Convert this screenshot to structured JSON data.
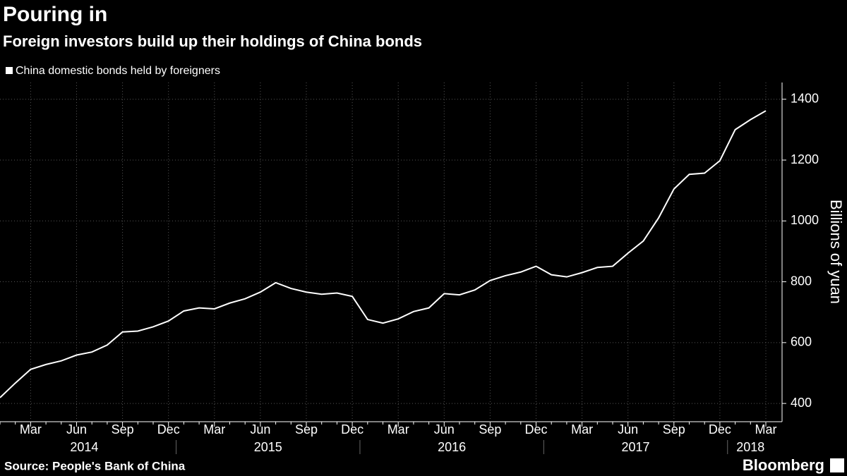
{
  "chart_data": {
    "type": "line",
    "title": "Pouring in",
    "subtitle": "Foreign investors build up their holdings of China bonds",
    "y_label": "Billions of yuan",
    "source": "Source: People's Bank of China",
    "credit": "Bloomberg",
    "categories": [
      null,
      null,
      "Mar",
      null,
      null,
      "Jun",
      null,
      null,
      "Sep",
      null,
      null,
      "Dec",
      null,
      null,
      "Mar",
      null,
      null,
      "Jun",
      null,
      null,
      "Sep",
      null,
      null,
      "Dec",
      null,
      null,
      "Mar",
      null,
      null,
      "Jun",
      null,
      null,
      "Sep",
      null,
      null,
      "Dec",
      null,
      null,
      "Mar",
      null,
      null,
      "Jun",
      null,
      null,
      "Sep",
      null,
      null,
      "Dec",
      null,
      null,
      "Mar"
    ],
    "years": [
      "2014",
      "2015",
      "2016",
      "2017",
      "2018"
    ],
    "series": [
      {
        "name": "China domestic bonds held by foreigners",
        "color": "#ffffff",
        "values": [
          419,
          467,
          512,
          528,
          540,
          559,
          569,
          592,
          635,
          638,
          652,
          671,
          704,
          714,
          711,
          730,
          744,
          766,
          797,
          778,
          766,
          759,
          763,
          752,
          676,
          664,
          678,
          702,
          714,
          761,
          757,
          773,
          804,
          820,
          832,
          851,
          823,
          816,
          830,
          847,
          851,
          894,
          934,
          1010,
          1105,
          1153,
          1157,
          1198,
          1300,
          1333,
          1362
        ]
      }
    ],
    "ylim": [
      340,
      1455
    ],
    "yticks": [
      400,
      600,
      800,
      1000,
      1200,
      1400
    ],
    "y_axis_side": "right",
    "grid": true
  }
}
